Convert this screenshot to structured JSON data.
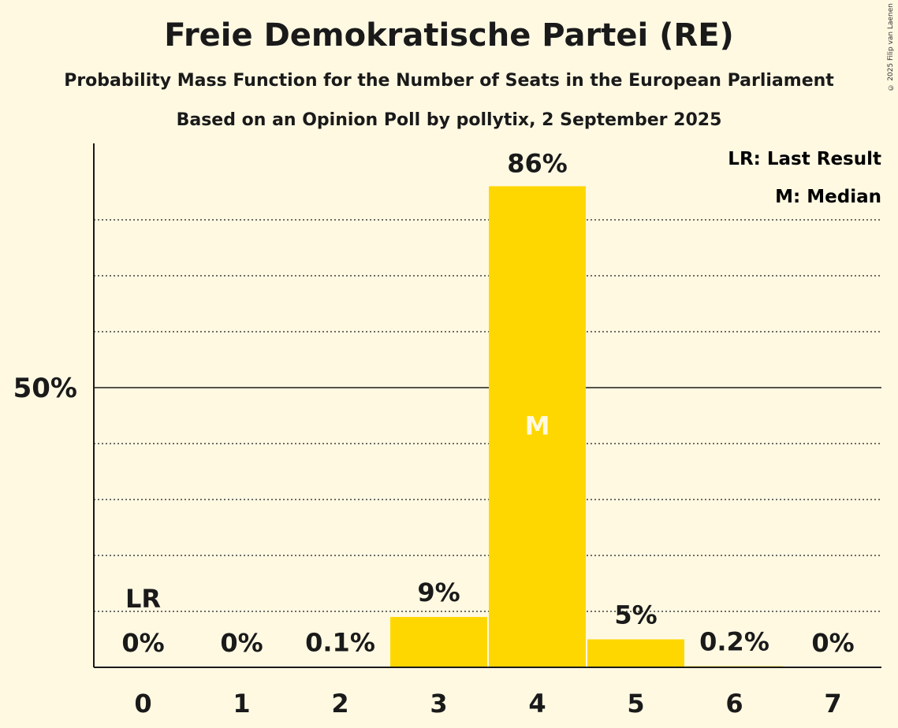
{
  "title": "Freie Demokratische Partei (RE)",
  "subtitle": "Probability Mass Function for the Number of Seats in the European Parliament",
  "subtitle2": "Based on an Opinion Poll by pollytix, 2 September 2025",
  "copyright": "© 2025 Filip van Laenen",
  "legend": {
    "lr": "LR: Last Result",
    "m": "M: Median"
  },
  "colors": {
    "background": "#fff9e2",
    "bar": "#ffd700",
    "axis": "#1a1a1a",
    "median_label": "#fff9e2"
  },
  "chart_data": {
    "type": "bar",
    "categories": [
      "0",
      "1",
      "2",
      "3",
      "4",
      "5",
      "6",
      "7"
    ],
    "values": [
      0,
      0,
      0.1,
      9,
      86,
      5,
      0.2,
      0
    ],
    "value_labels": [
      "0%",
      "0%",
      "0.1%",
      "9%",
      "86%",
      "5%",
      "0.2%",
      "0%"
    ],
    "ylim": [
      0,
      94
    ],
    "y_tick_label": "50%",
    "y_tick_value": 50,
    "dotted_gridlines": [
      10,
      20,
      30,
      40,
      60,
      70,
      80
    ],
    "last_result_index": 0,
    "last_result_label": "LR",
    "median_index": 4,
    "median_label": "M",
    "legend_position": "top-right"
  }
}
